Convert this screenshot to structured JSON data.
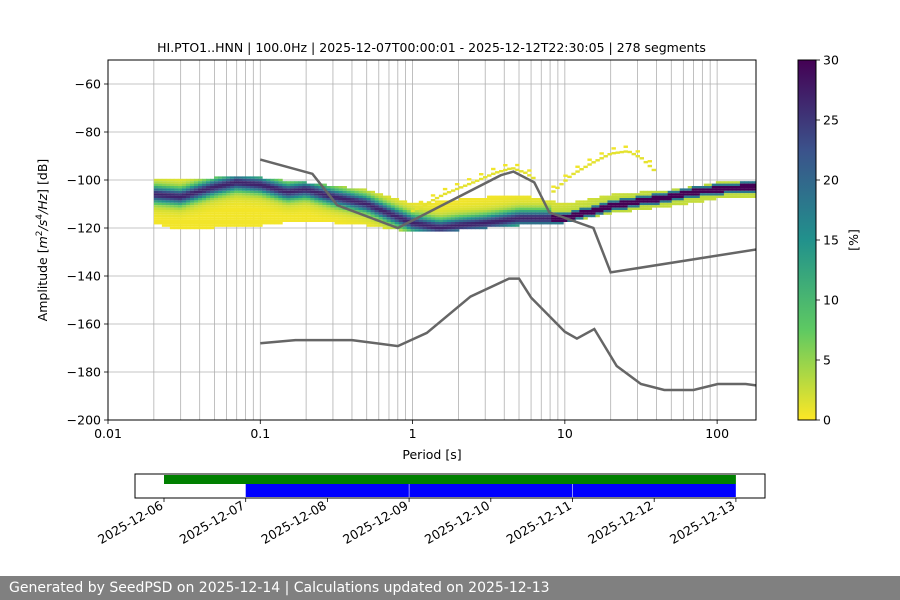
{
  "chart_data": [
    {
      "type": "heatmap",
      "title": "HI.PTO1..HNN | 100.0Hz | 2025-12-07T00:00:01 - 2025-12-12T22:30:05 | 278 segments",
      "xlabel": "Period [s]",
      "ylabel_parts": [
        "Amplitude [",
        "m",
        "2",
        "/s",
        "4",
        "/Hz",
        "] [dB]"
      ],
      "x_scale": "log",
      "xlim": [
        0.01,
        180
      ],
      "ylim": [
        -200,
        -50
      ],
      "grid": "vertical",
      "x_ticks": [
        {
          "value": 0.01,
          "label": "0.01"
        },
        {
          "value": 0.1,
          "label": "0.1"
        },
        {
          "value": 1,
          "label": "1"
        },
        {
          "value": 10,
          "label": "10"
        },
        {
          "value": 100,
          "label": "100"
        }
      ],
      "y_ticks": [
        {
          "value": -60,
          "label": "−60"
        },
        {
          "value": -80,
          "label": "−80"
        },
        {
          "value": -100,
          "label": "−100"
        },
        {
          "value": -120,
          "label": "−120"
        },
        {
          "value": -140,
          "label": "−140"
        },
        {
          "value": -160,
          "label": "−160"
        },
        {
          "value": -180,
          "label": "−180"
        },
        {
          "value": -200,
          "label": "−200"
        }
      ],
      "colorbar": {
        "label": "[%]",
        "range": [
          0,
          30
        ],
        "ticks": [
          {
            "value": 0,
            "label": "0"
          },
          {
            "value": 5,
            "label": "5"
          },
          {
            "value": 10,
            "label": "10"
          },
          {
            "value": 15,
            "label": "15"
          },
          {
            "value": 20,
            "label": "20"
          },
          {
            "value": 25,
            "label": "25"
          },
          {
            "value": 30,
            "label": "30"
          }
        ],
        "colors": [
          "#fde725",
          "#5ec962",
          "#21918c",
          "#3b528b",
          "#440154"
        ]
      },
      "psd_mode": {
        "period": [
          0.02,
          0.03,
          0.05,
          0.07,
          0.1,
          0.15,
          0.2,
          0.3,
          0.5,
          0.7,
          1,
          1.5,
          2,
          3,
          5,
          7,
          10,
          15,
          20,
          30,
          50,
          70,
          100,
          150,
          180
        ],
        "db": [
          -106,
          -107,
          -103,
          -101,
          -102,
          -105,
          -104,
          -107,
          -110,
          -114,
          -118,
          -120,
          -119,
          -118,
          -116,
          -116,
          -116,
          -113,
          -111,
          -109,
          -107,
          -105,
          -104,
          -103,
          -103
        ]
      },
      "psd_spread": {
        "period": [
          0.02,
          0.03,
          0.05,
          0.1,
          0.2,
          0.5,
          1,
          2,
          5,
          10,
          20,
          50,
          100,
          180
        ],
        "low_db": [
          -118,
          -121,
          -120,
          -119,
          -117,
          -119,
          -122,
          -121,
          -119,
          -118,
          -114,
          -111,
          -108,
          -107
        ],
        "high_db": [
          -99,
          -100,
          -99,
          -99,
          -101,
          -104,
          -110,
          -108,
          -106,
          -110,
          -106,
          -104,
          -101,
          -100
        ]
      },
      "noise_models": [
        {
          "period": [
            0.1,
            0.22,
            0.32,
            0.8,
            3.8,
            4.6,
            6.3,
            7.9,
            15.4,
            20,
            354.8
          ],
          "db": [
            -91.5,
            -97.4,
            -110.5,
            -120,
            -98,
            -96.5,
            -101,
            -113.5,
            -120,
            -138.5,
            -126
          ]
        },
        {
          "period": [
            0.1,
            0.17,
            0.4,
            0.8,
            1.24,
            2.4,
            4.3,
            5,
            6,
            10,
            12,
            15.6,
            21.9,
            31.6,
            45,
            70,
            101,
            154,
            180
          ],
          "db": [
            -168,
            -166.7,
            -166.7,
            -169.2,
            -163.7,
            -148.6,
            -141.1,
            -141.1,
            -149,
            -163.2,
            -166.1,
            -162.1,
            -177.5,
            -185,
            -187.5,
            -187.5,
            -185,
            -185,
            -185.6
          ]
        }
      ],
      "rare_ridges": [
        {
          "period": [
            1.0,
            1.6,
            2.5,
            3.5,
            4.5,
            5.5,
            6.5
          ],
          "db": [
            -113,
            -106,
            -101,
            -97,
            -95,
            -97,
            -100
          ]
        },
        {
          "period": [
            8,
            11,
            15,
            20,
            26,
            32,
            40
          ],
          "db": [
            -106,
            -98,
            -93,
            -89,
            -88,
            -91,
            -97
          ]
        }
      ]
    },
    {
      "type": "timeline",
      "x_ticks": [
        {
          "value": "2025-12-06",
          "label": "2025-12-06"
        },
        {
          "value": "2025-12-07",
          "label": "2025-12-07"
        },
        {
          "value": "2025-12-08",
          "label": "2025-12-08"
        },
        {
          "value": "2025-12-09",
          "label": "2025-12-09"
        },
        {
          "value": "2025-12-10",
          "label": "2025-12-10"
        },
        {
          "value": "2025-12-11",
          "label": "2025-12-11"
        },
        {
          "value": "2025-12-12",
          "label": "2025-12-12"
        },
        {
          "value": "2025-12-13",
          "label": "2025-12-13"
        }
      ],
      "green_span": {
        "start": "2025-12-06",
        "end": "2025-12-13",
        "color": "#008000"
      },
      "blue_spans": [
        {
          "start": "2025-12-07T00:00",
          "end": "2025-12-08T23:55",
          "color": "#0000ff"
        },
        {
          "start": "2025-12-09T00:05",
          "end": "2025-12-10T23:55",
          "color": "#0000ff"
        },
        {
          "start": "2025-12-11T00:05",
          "end": "2025-12-12T23:59",
          "color": "#0000ff"
        }
      ]
    }
  ],
  "footer": "Generated by SeedPSD on 2025-12-14 | Calculations updated on 2025-12-13"
}
